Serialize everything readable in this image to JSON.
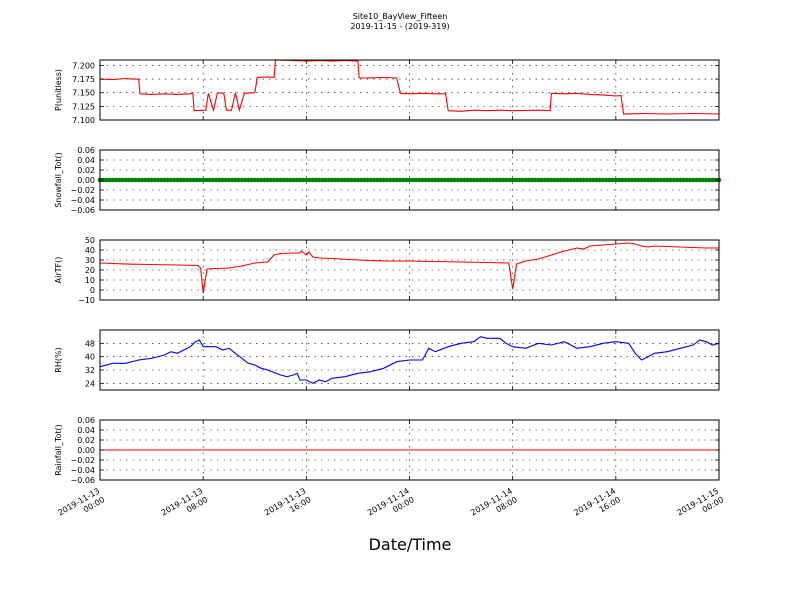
{
  "figure": {
    "title": "Site10_BayView_Fifteen",
    "subtitle": "2019-11-15 - (2019-319)",
    "xlabel": "Date/Time",
    "x_ticks": [
      [
        "2019-11-13",
        "00:00"
      ],
      [
        "2019-11-13",
        "08:00"
      ],
      [
        "2019-11-13",
        "16:00"
      ],
      [
        "2019-11-14",
        "00:00"
      ],
      [
        "2019-11-14",
        "08:00"
      ],
      [
        "2019-11-14",
        "16:00"
      ],
      [
        "2019-11-15",
        "00:00"
      ]
    ]
  },
  "chart_data": [
    {
      "type": "line",
      "ylabel": "P(unitless)",
      "color": "#ff0000",
      "x_range_hours": [
        0,
        48
      ],
      "ylim": [
        7.1,
        7.21
      ],
      "yticks": [
        "7.100",
        "7.125",
        "7.150",
        "7.175",
        "7.200"
      ],
      "ytick_values": [
        7.1,
        7.125,
        7.15,
        7.175,
        7.2
      ],
      "grid": true,
      "series": [
        {
          "values": [
            [
              0,
              7.175
            ],
            [
              1,
              7.174
            ],
            [
              2,
              7.176
            ],
            [
              2.5,
              7.175
            ],
            [
              3,
              7.175
            ],
            [
              3.1,
              7.148
            ],
            [
              4,
              7.147
            ],
            [
              5,
              7.148
            ],
            [
              6,
              7.147
            ],
            [
              7,
              7.148
            ],
            [
              7.2,
              7.15
            ],
            [
              7.3,
              7.117
            ],
            [
              8.2,
              7.118
            ],
            [
              8.4,
              7.149
            ],
            [
              8.8,
              7.118
            ],
            [
              9.1,
              7.15
            ],
            [
              9.6,
              7.149
            ],
            [
              9.8,
              7.118
            ],
            [
              10.2,
              7.118
            ],
            [
              10.5,
              7.15
            ],
            [
              10.8,
              7.118
            ],
            [
              11.2,
              7.149
            ],
            [
              12,
              7.15
            ],
            [
              12.2,
              7.178
            ],
            [
              13,
              7.179
            ],
            [
              13.5,
              7.178
            ],
            [
              13.6,
              7.21
            ],
            [
              15,
              7.209
            ],
            [
              16,
              7.208
            ],
            [
              17,
              7.209
            ],
            [
              18,
              7.208
            ],
            [
              19,
              7.209
            ],
            [
              20,
              7.208
            ],
            [
              20.1,
              7.177
            ],
            [
              21,
              7.177
            ],
            [
              22,
              7.178
            ],
            [
              23,
              7.177
            ],
            [
              23.3,
              7.149
            ],
            [
              24,
              7.148
            ],
            [
              25,
              7.149
            ],
            [
              26,
              7.148
            ],
            [
              26.8,
              7.148
            ],
            [
              27,
              7.117
            ],
            [
              28,
              7.116
            ],
            [
              29,
              7.118
            ],
            [
              30,
              7.117
            ],
            [
              31,
              7.118
            ],
            [
              32,
              7.117
            ],
            [
              34,
              7.118
            ],
            [
              34.9,
              7.117
            ],
            [
              35,
              7.149
            ],
            [
              36,
              7.148
            ],
            [
              37,
              7.149
            ],
            [
              38,
              7.147
            ],
            [
              39,
              7.146
            ],
            [
              40,
              7.144
            ],
            [
              40.4,
              7.145
            ],
            [
              40.6,
              7.111
            ],
            [
              42,
              7.112
            ],
            [
              44,
              7.111
            ],
            [
              46,
              7.112
            ],
            [
              48,
              7.111
            ]
          ]
        }
      ]
    },
    {
      "type": "scatter",
      "ylabel": "Snowfall_Tot()",
      "color": "#008000",
      "x_range_hours": [
        0,
        48
      ],
      "ylim": [
        -0.06,
        0.06
      ],
      "yticks": [
        "−0.06",
        "−0.04",
        "−0.02",
        "0.00",
        "0.02",
        "0.04",
        "0.06"
      ],
      "ytick_values": [
        -0.06,
        -0.04,
        -0.02,
        0,
        0.02,
        0.04,
        0.06
      ],
      "grid": true,
      "constant_value": 0,
      "point_interval_hours": 0.25
    },
    {
      "type": "line",
      "ylabel": "AirTF()",
      "color": "#ff0000",
      "x_range_hours": [
        0,
        48
      ],
      "ylim": [
        -10,
        50
      ],
      "yticks": [
        "−10",
        "0",
        "10",
        "20",
        "30",
        "40",
        "50"
      ],
      "ytick_values": [
        -10,
        0,
        10,
        20,
        30,
        40,
        50
      ],
      "grid": true,
      "series": [
        {
          "values": [
            [
              0,
              27
            ],
            [
              2,
              26
            ],
            [
              4,
              25.5
            ],
            [
              6,
              25
            ],
            [
              7.6,
              24.5
            ],
            [
              7.8,
              22
            ],
            [
              8.0,
              -3
            ],
            [
              8.3,
              21
            ],
            [
              9,
              21.5
            ],
            [
              10,
              22
            ],
            [
              11,
              24
            ],
            [
              12,
              27
            ],
            [
              13,
              28
            ],
            [
              13.2,
              31
            ],
            [
              13.5,
              35
            ],
            [
              14,
              36.5
            ],
            [
              15,
              37
            ],
            [
              15.5,
              37
            ],
            [
              15.6,
              39
            ],
            [
              16,
              35
            ],
            [
              16.2,
              38
            ],
            [
              16.5,
              33
            ],
            [
              17,
              32
            ],
            [
              18,
              31.5
            ],
            [
              20,
              30
            ],
            [
              22,
              29
            ],
            [
              24,
              29
            ],
            [
              26,
              28.5
            ],
            [
              28,
              28
            ],
            [
              30,
              27.5
            ],
            [
              31.7,
              27
            ],
            [
              32,
              1
            ],
            [
              32.3,
              26
            ],
            [
              33,
              29
            ],
            [
              34,
              31
            ],
            [
              35,
              35
            ],
            [
              36,
              39
            ],
            [
              37,
              42
            ],
            [
              37.5,
              41
            ],
            [
              38,
              44
            ],
            [
              39,
              45
            ],
            [
              40,
              46
            ],
            [
              41,
              47
            ],
            [
              41.5,
              46
            ],
            [
              42,
              44
            ],
            [
              42.5,
              43
            ],
            [
              43,
              44
            ],
            [
              45,
              43
            ],
            [
              47,
              42
            ],
            [
              48,
              42
            ]
          ]
        }
      ]
    },
    {
      "type": "line",
      "ylabel": "RH(%)",
      "color": "#0000ff",
      "x_range_hours": [
        0,
        48
      ],
      "ylim": [
        20,
        56
      ],
      "yticks": [
        "24",
        "32",
        "40",
        "48"
      ],
      "ytick_values": [
        24,
        32,
        40,
        48
      ],
      "grid": true,
      "series": [
        {
          "values": [
            [
              0,
              34
            ],
            [
              1,
              36
            ],
            [
              2,
              36
            ],
            [
              3,
              38
            ],
            [
              4,
              39
            ],
            [
              5,
              41
            ],
            [
              5.5,
              43
            ],
            [
              6,
              42
            ],
            [
              6.5,
              44
            ],
            [
              7,
              46
            ],
            [
              7.4,
              49
            ],
            [
              7.7,
              50
            ],
            [
              8,
              46
            ],
            [
              9,
              46
            ],
            [
              9.5,
              44
            ],
            [
              10,
              45
            ],
            [
              10.5,
              42
            ],
            [
              11,
              39
            ],
            [
              11.5,
              36
            ],
            [
              12,
              35
            ],
            [
              12.5,
              33
            ],
            [
              13,
              32
            ],
            [
              14,
              29
            ],
            [
              14.5,
              28
            ],
            [
              15,
              29
            ],
            [
              15.3,
              30
            ],
            [
              15.5,
              26
            ],
            [
              16,
              26
            ],
            [
              16.5,
              24
            ],
            [
              17,
              26
            ],
            [
              17.5,
              25
            ],
            [
              18,
              27
            ],
            [
              19,
              28
            ],
            [
              20,
              30
            ],
            [
              21,
              31
            ],
            [
              22,
              33
            ],
            [
              23,
              37
            ],
            [
              24,
              38
            ],
            [
              25,
              38
            ],
            [
              25.5,
              45
            ],
            [
              26,
              43
            ],
            [
              27,
              46
            ],
            [
              28,
              48
            ],
            [
              29,
              49
            ],
            [
              29.5,
              52
            ],
            [
              30,
              51
            ],
            [
              31,
              51
            ],
            [
              31.5,
              48
            ],
            [
              32,
              46
            ],
            [
              33,
              45
            ],
            [
              34,
              48
            ],
            [
              35,
              47
            ],
            [
              36,
              49
            ],
            [
              36.5,
              47
            ],
            [
              37,
              45
            ],
            [
              38,
              46
            ],
            [
              39,
              48
            ],
            [
              40,
              49
            ],
            [
              41,
              48
            ],
            [
              41.5,
              42
            ],
            [
              42,
              38
            ],
            [
              42.5,
              40
            ],
            [
              43,
              42
            ],
            [
              44,
              43
            ],
            [
              45,
              45
            ],
            [
              46,
              47
            ],
            [
              46.5,
              50
            ],
            [
              47,
              49
            ],
            [
              47.5,
              47
            ],
            [
              48,
              48
            ]
          ]
        }
      ]
    },
    {
      "type": "line",
      "ylabel": "Rainfall_Tot()",
      "color": "#ff0000",
      "x_range_hours": [
        0,
        48
      ],
      "ylim": [
        -0.06,
        0.06
      ],
      "yticks": [
        "−0.06",
        "−0.04",
        "−0.02",
        "0.00",
        "0.02",
        "0.04",
        "0.06"
      ],
      "ytick_values": [
        -0.06,
        -0.04,
        -0.02,
        0,
        0.02,
        0.04,
        0.06
      ],
      "grid": true,
      "series": [
        {
          "values": [
            [
              0,
              0
            ],
            [
              48,
              0
            ]
          ]
        }
      ]
    }
  ]
}
